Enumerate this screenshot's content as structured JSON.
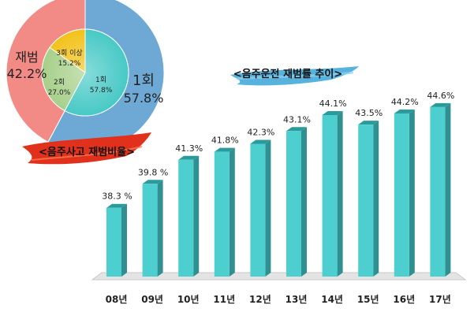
{
  "colors": {
    "bar_front": "#4ecfcf",
    "bar_top": "#2a9a9a",
    "bar_side": "#2f8f91",
    "floor": "#e4e4e4",
    "pie_outer_repeat": "#f28a86",
    "pie_outer_first": "#6ea9d6",
    "pie_inner_3plus": "#f2c21a",
    "pie_inner_2": "#a7d08a",
    "pie_inner_1": "#47c9c6",
    "banner_red": "#e1311c",
    "banner_blue": "#3aa6d8"
  },
  "bar_banner": {
    "text": "<음주운전 재범률 추이>"
  },
  "pie_banner": {
    "text": "<음주사고 재범비율>"
  },
  "chart_data": [
    {
      "type": "bar",
      "title": "<음주운전 재범률 추이>",
      "categories": [
        "08년",
        "09년",
        "10년",
        "11년",
        "12년",
        "13년",
        "14년",
        "15년",
        "16년",
        "17년"
      ],
      "values": [
        38.3,
        39.8,
        41.3,
        41.8,
        42.3,
        43.1,
        44.1,
        43.5,
        44.2,
        44.6
      ],
      "value_labels": [
        "38.3 %",
        "39.8 %",
        "41.3%",
        "41.8%",
        "42.3%",
        "43.1%",
        "44.1%",
        "43.5%",
        "44.2%",
        "44.6%"
      ],
      "unit": "%"
    },
    {
      "type": "pie",
      "title": "<음주사고 재범비율>",
      "outer": [
        {
          "name": "1회",
          "value": 57.8,
          "label": "57.8%"
        },
        {
          "name": "재범",
          "value": 42.2,
          "label": "42.2%"
        }
      ],
      "inner": [
        {
          "name": "1회",
          "value": 57.8,
          "label": "57.8%"
        },
        {
          "name": "2회",
          "value": 27.0,
          "label": "27.0%"
        },
        {
          "name": "3회 이상",
          "value": 15.2,
          "label": "15.2%"
        }
      ]
    }
  ]
}
